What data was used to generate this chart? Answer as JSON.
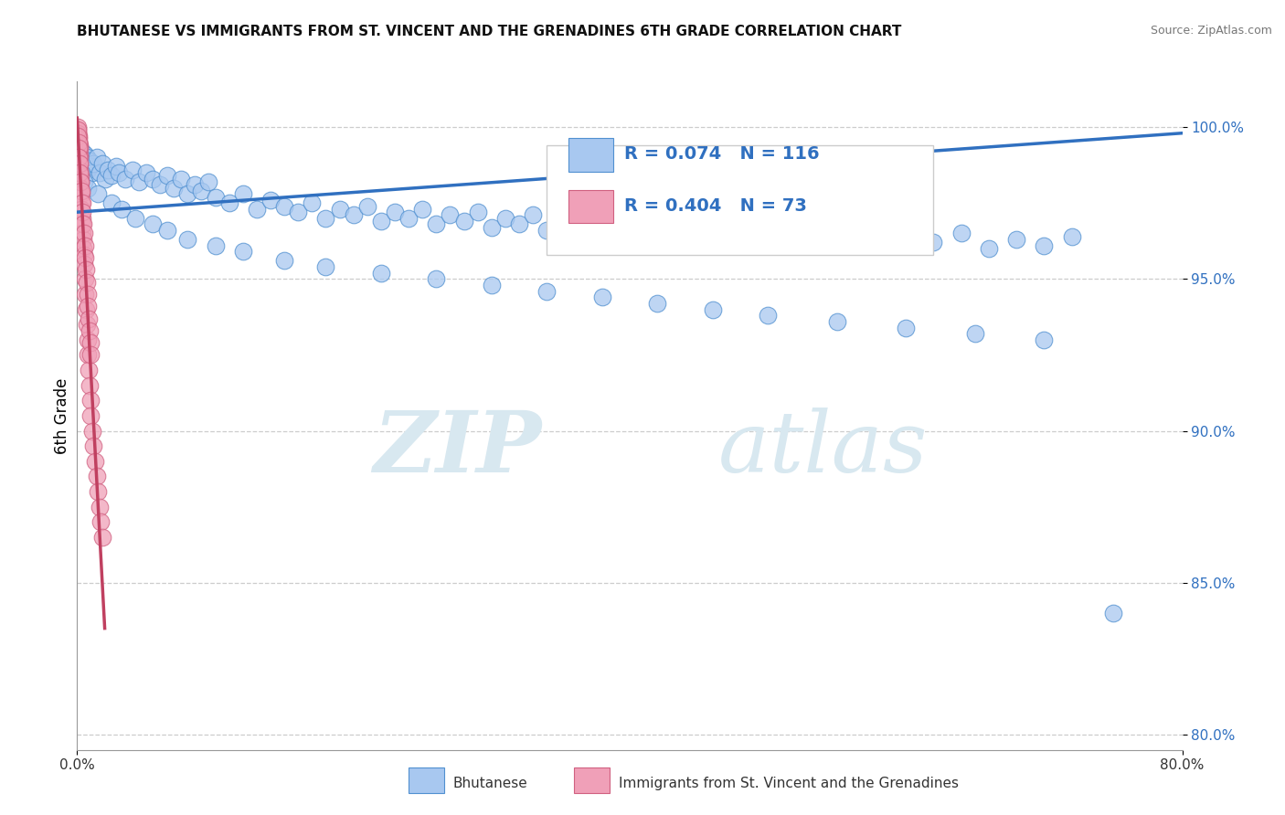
{
  "title": "BHUTANESE VS IMMIGRANTS FROM ST. VINCENT AND THE GRENADINES 6TH GRADE CORRELATION CHART",
  "source": "Source: ZipAtlas.com",
  "ylabel": "6th Grade",
  "xlim": [
    0.0,
    80.0
  ],
  "ylim": [
    79.5,
    101.5
  ],
  "y_ticks": [
    80.0,
    85.0,
    90.0,
    95.0,
    100.0
  ],
  "blue_color": "#A8C8F0",
  "pink_color": "#F0A0B8",
  "blue_edge_color": "#5090D0",
  "pink_edge_color": "#D06080",
  "blue_line_color": "#3070C0",
  "pink_line_color": "#C04060",
  "R_blue": 0.074,
  "N_blue": 116,
  "R_pink": 0.404,
  "N_pink": 73,
  "legend_label_blue": "Bhutanese",
  "legend_label_pink": "Immigrants from St. Vincent and the Grenadines",
  "watermark_zip": "ZIP",
  "watermark_atlas": "atlas",
  "title_fontsize": 11,
  "source_fontsize": 9,
  "blue_scatter_x": [
    0.1,
    0.15,
    0.2,
    0.25,
    0.3,
    0.35,
    0.4,
    0.45,
    0.5,
    0.55,
    0.6,
    0.7,
    0.8,
    0.9,
    1.0,
    1.1,
    1.2,
    1.4,
    1.6,
    1.8,
    2.0,
    2.2,
    2.5,
    2.8,
    3.0,
    3.5,
    4.0,
    4.5,
    5.0,
    5.5,
    6.0,
    6.5,
    7.0,
    7.5,
    8.0,
    8.5,
    9.0,
    9.5,
    10.0,
    11.0,
    12.0,
    13.0,
    14.0,
    15.0,
    16.0,
    17.0,
    18.0,
    19.0,
    20.0,
    21.0,
    22.0,
    23.0,
    24.0,
    25.0,
    26.0,
    27.0,
    28.0,
    29.0,
    30.0,
    31.0,
    32.0,
    33.0,
    34.0,
    35.0,
    36.0,
    37.0,
    38.0,
    39.0,
    40.0,
    41.0,
    42.0,
    43.0,
    44.0,
    45.0,
    46.0,
    47.0,
    48.0,
    49.0,
    50.0,
    52.0,
    54.0,
    56.0,
    58.0,
    60.0,
    62.0,
    64.0,
    66.0,
    68.0,
    70.0,
    72.0,
    0.3,
    0.5,
    0.8,
    1.5,
    2.5,
    3.2,
    4.2,
    5.5,
    6.5,
    8.0,
    10.0,
    12.0,
    15.0,
    18.0,
    22.0,
    26.0,
    30.0,
    34.0,
    38.0,
    42.0,
    46.0,
    50.0,
    55.0,
    60.0,
    65.0,
    70.0
  ],
  "blue_scatter_y": [
    99.0,
    99.3,
    98.8,
    99.1,
    98.9,
    99.2,
    99.0,
    98.7,
    98.9,
    99.1,
    98.8,
    99.0,
    98.6,
    98.9,
    98.7,
    98.5,
    98.8,
    99.0,
    98.5,
    98.8,
    98.3,
    98.6,
    98.4,
    98.7,
    98.5,
    98.3,
    98.6,
    98.2,
    98.5,
    98.3,
    98.1,
    98.4,
    98.0,
    98.3,
    97.8,
    98.1,
    97.9,
    98.2,
    97.7,
    97.5,
    97.8,
    97.3,
    97.6,
    97.4,
    97.2,
    97.5,
    97.0,
    97.3,
    97.1,
    97.4,
    96.9,
    97.2,
    97.0,
    97.3,
    96.8,
    97.1,
    96.9,
    97.2,
    96.7,
    97.0,
    96.8,
    97.1,
    96.6,
    96.9,
    96.7,
    97.0,
    96.5,
    96.8,
    96.6,
    96.9,
    96.4,
    96.7,
    96.5,
    96.8,
    96.3,
    96.6,
    96.4,
    96.7,
    96.2,
    96.5,
    96.3,
    96.6,
    96.1,
    96.4,
    96.2,
    96.5,
    96.0,
    96.3,
    96.1,
    96.4,
    98.5,
    98.2,
    98.0,
    97.8,
    97.5,
    97.3,
    97.0,
    96.8,
    96.6,
    96.3,
    96.1,
    95.9,
    95.6,
    95.4,
    95.2,
    95.0,
    94.8,
    94.6,
    94.4,
    94.2,
    94.0,
    93.8,
    93.6,
    93.4,
    93.2,
    93.0
  ],
  "pink_scatter_x": [
    0.02,
    0.03,
    0.04,
    0.05,
    0.06,
    0.07,
    0.08,
    0.09,
    0.1,
    0.11,
    0.12,
    0.13,
    0.14,
    0.15,
    0.16,
    0.17,
    0.18,
    0.19,
    0.2,
    0.22,
    0.24,
    0.26,
    0.28,
    0.3,
    0.32,
    0.35,
    0.38,
    0.4,
    0.42,
    0.45,
    0.48,
    0.5,
    0.55,
    0.6,
    0.65,
    0.7,
    0.75,
    0.8,
    0.85,
    0.9,
    0.95,
    1.0,
    1.1,
    1.2,
    1.3,
    1.4,
    1.5,
    1.6,
    1.7,
    1.8,
    0.04,
    0.06,
    0.08,
    0.1,
    0.13,
    0.16,
    0.2,
    0.25,
    0.3,
    0.35,
    0.4,
    0.45,
    0.5,
    0.55,
    0.6,
    0.65,
    0.7,
    0.75,
    0.8,
    0.85,
    0.9,
    0.95,
    1.0
  ],
  "pink_scatter_y": [
    99.8,
    99.7,
    99.9,
    99.6,
    100.0,
    99.8,
    99.5,
    99.7,
    99.4,
    99.6,
    99.3,
    99.5,
    99.2,
    99.4,
    99.1,
    99.3,
    99.0,
    98.8,
    98.6,
    98.4,
    98.2,
    98.0,
    97.8,
    97.5,
    97.3,
    97.0,
    96.8,
    96.5,
    96.3,
    96.0,
    95.8,
    95.5,
    95.0,
    94.5,
    94.0,
    93.5,
    93.0,
    92.5,
    92.0,
    91.5,
    91.0,
    90.5,
    90.0,
    89.5,
    89.0,
    88.5,
    88.0,
    87.5,
    87.0,
    86.5,
    99.9,
    99.7,
    99.5,
    99.3,
    99.0,
    98.8,
    98.5,
    98.2,
    97.9,
    97.5,
    97.2,
    96.8,
    96.5,
    96.1,
    95.7,
    95.3,
    94.9,
    94.5,
    94.1,
    93.7,
    93.3,
    92.9,
    92.5
  ],
  "blue_trend_x": [
    0.0,
    80.0
  ],
  "blue_trend_y": [
    97.2,
    99.8
  ],
  "pink_trend_x": [
    0.0,
    2.0
  ],
  "pink_trend_y": [
    100.3,
    83.5
  ],
  "blue_outlier_x": [
    75.0
  ],
  "blue_outlier_y": [
    84.0
  ]
}
